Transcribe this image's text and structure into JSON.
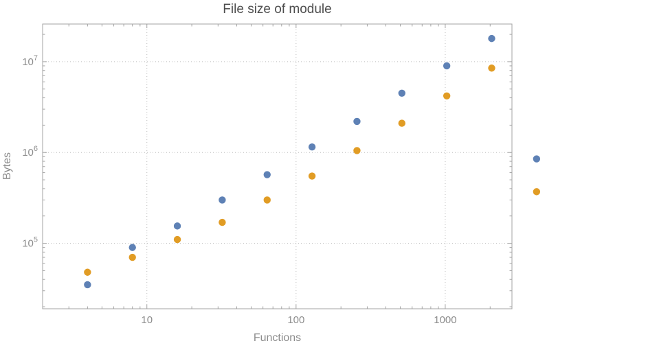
{
  "title": "File size of module",
  "xlabel": "Functions",
  "ylabel": "Bytes",
  "colors": {
    "background": "#ffffff",
    "frame": "#a3a3a3",
    "grid": "#bdbdbd",
    "tick_text": "#8c8c8c",
    "title_text": "#4d4d4d",
    "series_blue": "#5e81b5",
    "series_orange": "#e19c24"
  },
  "chart_data": {
    "type": "scatter",
    "title": "File size of module",
    "xlabel": "Functions",
    "ylabel": "Bytes",
    "x_scale": "log",
    "y_scale": "log",
    "grid": true,
    "legend": "none",
    "x_range": [
      2,
      2800
    ],
    "y_range": [
      19000,
      26000000
    ],
    "x_ticks": [
      10,
      100,
      1000
    ],
    "x_tick_labels": [
      "10",
      "100",
      "1000"
    ],
    "y_ticks": [
      100000,
      1000000,
      10000000
    ],
    "y_tick_base": "10",
    "y_tick_exponents": [
      "5",
      "6",
      "7"
    ],
    "x": [
      4,
      8,
      16,
      32,
      64,
      128,
      256,
      512,
      1024,
      2048,
      4096
    ],
    "series": [
      {
        "name": "series-blue",
        "color": "#5e81b5",
        "values": [
          35000,
          90000,
          155000,
          300000,
          570000,
          1150000,
          2200000,
          4500000,
          9000000,
          18000000,
          850000
        ]
      },
      {
        "name": "series-orange",
        "color": "#e19c24",
        "values": [
          48000,
          70000,
          110000,
          170000,
          300000,
          550000,
          1050000,
          2100000,
          4200000,
          8500000,
          370000
        ]
      }
    ]
  }
}
